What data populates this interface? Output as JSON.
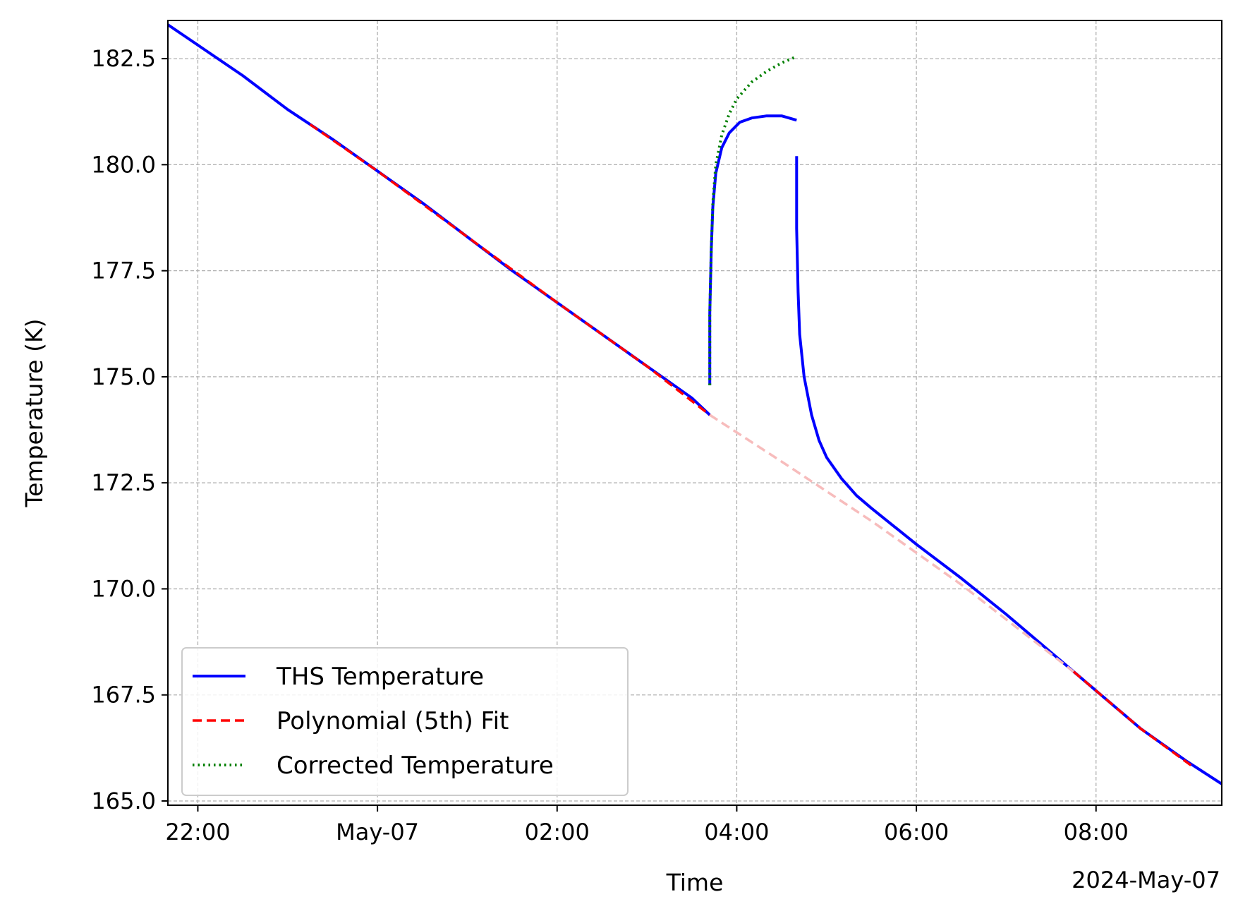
{
  "chart_data": {
    "type": "line",
    "title": "",
    "xlabel": "Time",
    "ylabel": "Temperature (K)",
    "x_offset_label": "2024-May-07",
    "xlim": [
      "2024-05-06 21:40",
      "2024-05-07 09:24"
    ],
    "ylim": [
      164.9,
      183.4
    ],
    "grid": true,
    "legend_position": "lower-left",
    "x_ticks": [
      {
        "value": "2024-05-06 22:00",
        "label": "22:00"
      },
      {
        "value": "2024-05-07 00:00",
        "label": "May-07"
      },
      {
        "value": "2024-05-07 02:00",
        "label": "02:00"
      },
      {
        "value": "2024-05-07 04:00",
        "label": "04:00"
      },
      {
        "value": "2024-05-07 06:00",
        "label": "06:00"
      },
      {
        "value": "2024-05-07 08:00",
        "label": "08:00"
      }
    ],
    "y_ticks": [
      {
        "value": 165.0,
        "label": "165.0"
      },
      {
        "value": 167.5,
        "label": "167.5"
      },
      {
        "value": 170.0,
        "label": "170.0"
      },
      {
        "value": 172.5,
        "label": "172.5"
      },
      {
        "value": 175.0,
        "label": "175.0"
      },
      {
        "value": 177.5,
        "label": "177.5"
      },
      {
        "value": 180.0,
        "label": "180.0"
      },
      {
        "value": 182.5,
        "label": "182.5"
      }
    ],
    "series": [
      {
        "name": "THS Temperature",
        "color": "#0000ff",
        "style": "solid",
        "segments": [
          [
            {
              "x": "2024-05-06 21:40",
              "y": 183.3
            },
            {
              "x": "2024-05-06 22:30",
              "y": 182.1
            },
            {
              "x": "2024-05-06 23:00",
              "y": 181.3
            },
            {
              "x": "2024-05-06 23:30",
              "y": 180.6
            },
            {
              "x": "2024-05-07 00:00",
              "y": 179.85
            },
            {
              "x": "2024-05-07 00:30",
              "y": 179.1
            },
            {
              "x": "2024-05-07 01:00",
              "y": 178.3
            },
            {
              "x": "2024-05-07 01:30",
              "y": 177.5
            },
            {
              "x": "2024-05-07 02:00",
              "y": 176.75
            },
            {
              "x": "2024-05-07 02:30",
              "y": 176.0
            },
            {
              "x": "2024-05-07 03:00",
              "y": 175.25
            },
            {
              "x": "2024-05-07 03:30",
              "y": 174.5
            },
            {
              "x": "2024-05-07 03:42",
              "y": 174.1
            }
          ],
          [
            {
              "x": "2024-05-07 03:42",
              "y": 174.8
            },
            {
              "x": "2024-05-07 03:42",
              "y": 176.5
            },
            {
              "x": "2024-05-07 03:43",
              "y": 178.0
            },
            {
              "x": "2024-05-07 03:44",
              "y": 179.0
            },
            {
              "x": "2024-05-07 03:46",
              "y": 179.8
            },
            {
              "x": "2024-05-07 03:50",
              "y": 180.4
            },
            {
              "x": "2024-05-07 03:55",
              "y": 180.75
            },
            {
              "x": "2024-05-07 04:02",
              "y": 181.0
            },
            {
              "x": "2024-05-07 04:10",
              "y": 181.1
            },
            {
              "x": "2024-05-07 04:20",
              "y": 181.15
            },
            {
              "x": "2024-05-07 04:30",
              "y": 181.15
            },
            {
              "x": "2024-05-07 04:40",
              "y": 181.05
            }
          ],
          [
            {
              "x": "2024-05-07 04:40",
              "y": 180.2
            },
            {
              "x": "2024-05-07 04:40",
              "y": 178.5
            },
            {
              "x": "2024-05-07 04:41",
              "y": 177.0
            },
            {
              "x": "2024-05-07 04:42",
              "y": 176.0
            },
            {
              "x": "2024-05-07 04:45",
              "y": 175.0
            },
            {
              "x": "2024-05-07 04:50",
              "y": 174.1
            },
            {
              "x": "2024-05-07 04:55",
              "y": 173.5
            },
            {
              "x": "2024-05-07 05:00",
              "y": 173.1
            },
            {
              "x": "2024-05-07 05:10",
              "y": 172.6
            },
            {
              "x": "2024-05-07 05:20",
              "y": 172.2
            },
            {
              "x": "2024-05-07 05:30",
              "y": 171.9
            },
            {
              "x": "2024-05-07 06:00",
              "y": 171.05
            },
            {
              "x": "2024-05-07 06:30",
              "y": 170.25
            },
            {
              "x": "2024-05-07 07:00",
              "y": 169.4
            },
            {
              "x": "2024-05-07 07:30",
              "y": 168.5
            },
            {
              "x": "2024-05-07 08:00",
              "y": 167.6
            },
            {
              "x": "2024-05-07 08:30",
              "y": 166.7
            },
            {
              "x": "2024-05-07 09:00",
              "y": 165.95
            },
            {
              "x": "2024-05-07 09:24",
              "y": 165.4
            }
          ]
        ]
      },
      {
        "name": "Polynomial (5th) Fit",
        "color": "#ff0000",
        "style": "dashed",
        "segments": [
          [
            {
              "x": "2024-05-06 23:15",
              "y": 180.95
            },
            {
              "x": "2024-05-07 00:00",
              "y": 179.85
            },
            {
              "x": "2024-05-07 01:00",
              "y": 178.3
            },
            {
              "x": "2024-05-07 02:00",
              "y": 176.75
            },
            {
              "x": "2024-05-07 03:00",
              "y": 175.25
            },
            {
              "x": "2024-05-07 03:42",
              "y": 174.1
            }
          ],
          [
            {
              "x": "2024-05-07 07:45",
              "y": 168.05
            },
            {
              "x": "2024-05-07 08:00",
              "y": 167.6
            },
            {
              "x": "2024-05-07 08:30",
              "y": 166.7
            },
            {
              "x": "2024-05-07 09:05",
              "y": 165.8
            }
          ]
        ]
      },
      {
        "name": "",
        "legend": false,
        "color": "#f7bcbc",
        "style": "dashed",
        "segments": [
          [
            {
              "x": "2024-05-07 03:42",
              "y": 174.1
            },
            {
              "x": "2024-05-07 04:30",
              "y": 173.0
            },
            {
              "x": "2024-05-07 05:30",
              "y": 171.6
            },
            {
              "x": "2024-05-07 06:30",
              "y": 170.1
            },
            {
              "x": "2024-05-07 07:45",
              "y": 168.05
            }
          ]
        ]
      },
      {
        "name": "Corrected Temperature",
        "color": "#008000",
        "style": "dotted",
        "segments": [
          [
            {
              "x": "2024-05-07 03:42",
              "y": 174.8
            },
            {
              "x": "2024-05-07 03:42",
              "y": 176.5
            },
            {
              "x": "2024-05-07 03:43",
              "y": 178.0
            },
            {
              "x": "2024-05-07 03:44",
              "y": 179.1
            },
            {
              "x": "2024-05-07 03:46",
              "y": 180.0
            },
            {
              "x": "2024-05-07 03:50",
              "y": 180.7
            },
            {
              "x": "2024-05-07 03:55",
              "y": 181.2
            },
            {
              "x": "2024-05-07 04:00",
              "y": 181.55
            },
            {
              "x": "2024-05-07 04:10",
              "y": 181.95
            },
            {
              "x": "2024-05-07 04:20",
              "y": 182.2
            },
            {
              "x": "2024-05-07 04:30",
              "y": 182.4
            },
            {
              "x": "2024-05-07 04:40",
              "y": 182.55
            }
          ]
        ]
      }
    ]
  }
}
